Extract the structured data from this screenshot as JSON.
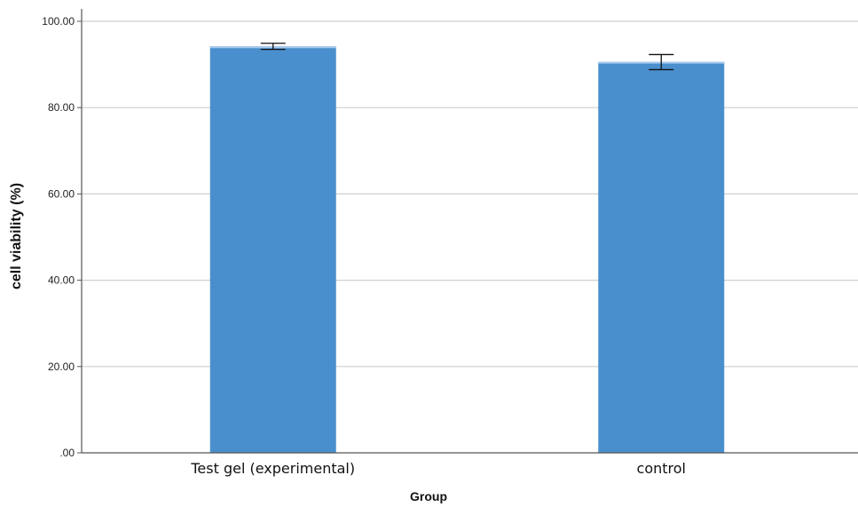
{
  "chart_data": {
    "type": "bar",
    "title": "",
    "xlabel": "Group",
    "ylabel": "cell viability (%)",
    "categories": [
      "Test gel (experimental)",
      "control"
    ],
    "values": [
      94.2,
      90.6
    ],
    "error_low": [
      93.5,
      88.8
    ],
    "error_high": [
      94.9,
      92.3
    ],
    "ylim": [
      0,
      100
    ],
    "yticks": [
      ".00",
      "20.00",
      "40.00",
      "60.00",
      "80.00",
      "100.00"
    ],
    "ytick_values": [
      0,
      20,
      40,
      60,
      80,
      100
    ],
    "grid": true,
    "legend": "none",
    "colors": {
      "bar": "#4a8fcd",
      "bar_top": "#a8cbee",
      "grid": "#cfcfcf",
      "axis": "#555555",
      "error": "#111111"
    }
  }
}
